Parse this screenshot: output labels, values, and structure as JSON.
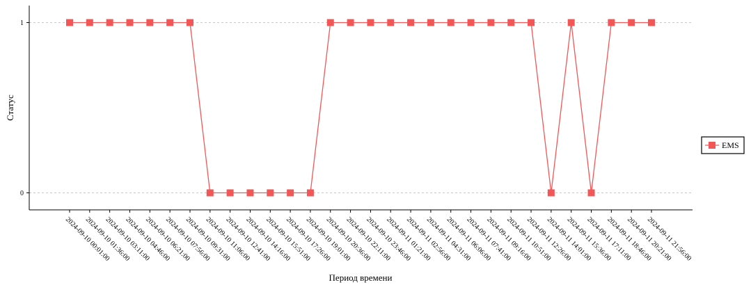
{
  "chart_data": {
    "type": "line",
    "x_label": "Период времени",
    "y_label": "Статус",
    "categories": [
      "2024-09-10 00:01:00",
      "2024-09-10 01:36:00",
      "2024-09-10 03:11:00",
      "2024-09-10 04:46:00",
      "2024-09-10 06:21:00",
      "2024-09-10 07:56:00",
      "2024-09-10 09:31:00",
      "2024-09-10 11:06:00",
      "2024-09-10 12:41:00",
      "2024-09-10 14:16:00",
      "2024-09-10 15:51:00",
      "2024-09-10 17:26:00",
      "2024-09-10 19:01:00",
      "2024-09-10 20:36:00",
      "2024-09-10 22:11:00",
      "2024-09-10 23:46:00",
      "2024-09-11 01:21:00",
      "2024-09-11 02:56:00",
      "2024-09-11 04:31:00",
      "2024-09-11 06:06:00",
      "2024-09-11 07:41:00",
      "2024-09-11 09:16:00",
      "2024-09-11 10:51:00",
      "2024-09-11 12:26:00",
      "2024-09-11 14:01:00",
      "2024-09-11 15:36:00",
      "2024-09-11 17:11:00",
      "2024-09-11 18:46:00",
      "2024-09-11 20:21:00",
      "2024-09-11 21:56:00"
    ],
    "series": [
      {
        "name": "EMS",
        "color": "#f25757",
        "values": [
          1,
          1,
          1,
          1,
          1,
          1,
          1,
          0,
          0,
          0,
          0,
          0,
          0,
          1,
          1,
          1,
          1,
          1,
          1,
          1,
          1,
          1,
          1,
          1,
          0,
          1,
          0,
          1,
          1,
          1
        ]
      }
    ],
    "ylim": [
      -0.1,
      1.1
    ],
    "yticks": [
      0,
      1
    ],
    "grid": true,
    "legend": "right"
  }
}
